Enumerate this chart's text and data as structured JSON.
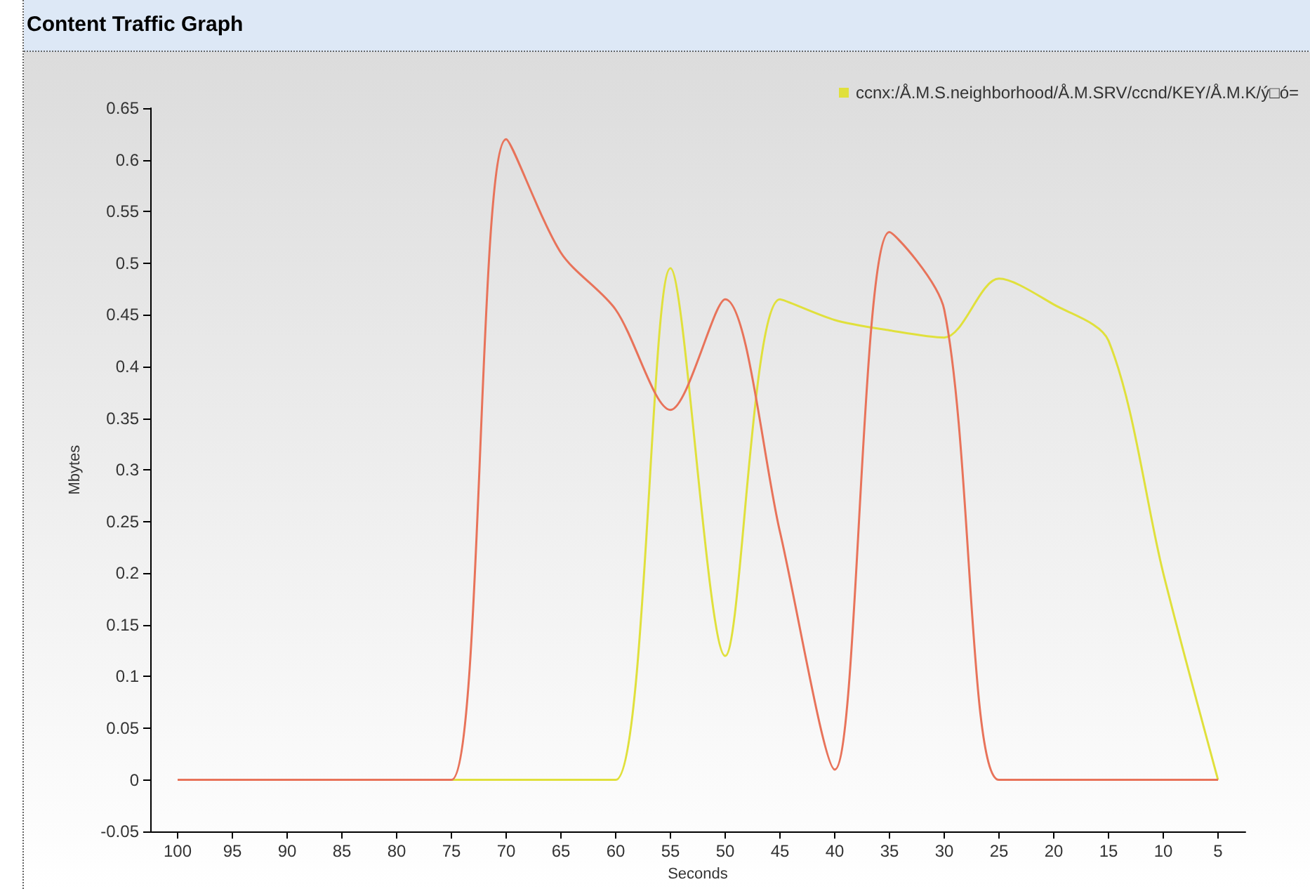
{
  "chart_data": {
    "type": "line",
    "title": "Content Traffic Graph",
    "xlabel": "Seconds",
    "ylabel": "Mbytes",
    "x": [
      100,
      95,
      90,
      85,
      80,
      75,
      70,
      65,
      60,
      55,
      50,
      45,
      40,
      35,
      30,
      25,
      20,
      15,
      10,
      5
    ],
    "series": [
      {
        "color": "#e8735a",
        "values": [
          0,
          0,
          0,
          0,
          0,
          0,
          0.62,
          0.51,
          0.455,
          0.358,
          0.465,
          0.24,
          0.01,
          0.53,
          0.455,
          0,
          0,
          0,
          0,
          0
        ]
      },
      {
        "name": "ccnx:/Å.M.S.neighborhood/Å.M.SRV/ccnd/KEY/Å.M.K/ý□ó=",
        "color": "#e0e03c",
        "values": [
          null,
          null,
          null,
          null,
          null,
          0,
          0,
          0,
          0,
          0.495,
          0.12,
          0.465,
          0.445,
          0.435,
          0.428,
          0.485,
          0.46,
          0.425,
          0.2,
          0
        ]
      }
    ],
    "xlim": [
      102.5,
      2.5
    ],
    "xticks": [
      100,
      95,
      90,
      85,
      80,
      75,
      70,
      65,
      60,
      55,
      50,
      45,
      40,
      35,
      30,
      25,
      20,
      15,
      10,
      5
    ],
    "ylim": [
      -0.05,
      0.65
    ],
    "yticks": [
      -0.05,
      0,
      0.05,
      0.1,
      0.15,
      0.2,
      0.25,
      0.3,
      0.35,
      0.4,
      0.45,
      0.5,
      0.55,
      0.6,
      0.65
    ],
    "legend": "top right",
    "marker": "none",
    "line_style": "solid"
  }
}
